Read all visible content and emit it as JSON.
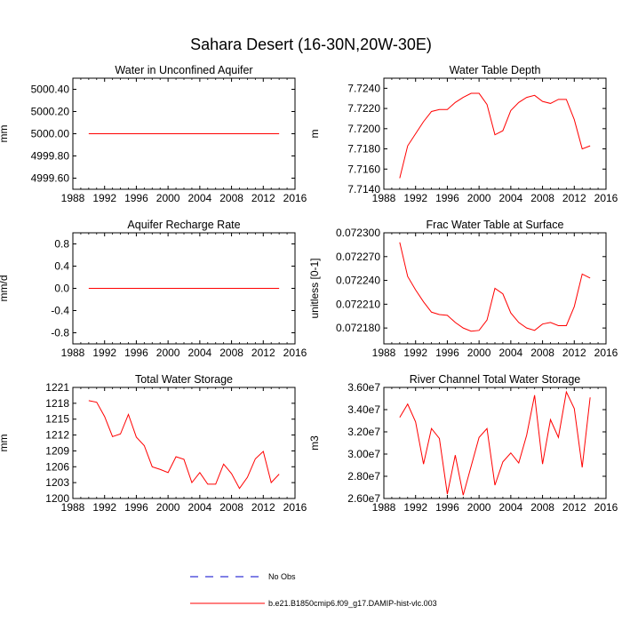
{
  "figure": {
    "title": "Sahara Desert (16-30N,20W-30E)"
  },
  "legend": [
    {
      "label": "No Obs",
      "color": "#0000cc",
      "dash": "dashed"
    },
    {
      "label": "b.e21.B1850cmip6.f09_g17.DAMIP-hist-vlc.003",
      "color": "#ff0000",
      "dash": "solid"
    }
  ],
  "chart_data": [
    {
      "type": "line",
      "title": "Water in Unconfined Aquifer",
      "ylabel": "mm",
      "xlim": [
        1988,
        2016
      ],
      "xticks": [
        1988,
        1992,
        1996,
        2000,
        2004,
        2008,
        2012,
        2016
      ],
      "xtick_labels": [
        "1988",
        "1992",
        "1996",
        "2000",
        "2004",
        "2008",
        "2012",
        "2016"
      ],
      "ylim": [
        4999.5,
        5000.5
      ],
      "yticks": [
        4999.6,
        4999.8,
        5000.0,
        5000.2,
        5000.4
      ],
      "ytick_labels": [
        "4999.60",
        "4999.80",
        "5000.00",
        "5000.20",
        "5000.40"
      ],
      "series": [
        {
          "color": "#ff0000",
          "x": [
            1990,
            1991,
            1992,
            1993,
            1994,
            1995,
            1996,
            1997,
            1998,
            1999,
            2000,
            2001,
            2002,
            2003,
            2004,
            2005,
            2006,
            2007,
            2008,
            2009,
            2010,
            2011,
            2012,
            2013,
            2014
          ],
          "y": [
            5000,
            5000,
            5000,
            5000,
            5000,
            5000,
            5000,
            5000,
            5000,
            5000,
            5000,
            5000,
            5000,
            5000,
            5000,
            5000,
            5000,
            5000,
            5000,
            5000,
            5000,
            5000,
            5000,
            5000,
            5000
          ]
        }
      ]
    },
    {
      "type": "line",
      "title": "Water Table Depth",
      "ylabel": "m",
      "xlim": [
        1988,
        2016
      ],
      "xticks": [
        1988,
        1992,
        1996,
        2000,
        2004,
        2008,
        2012,
        2016
      ],
      "xtick_labels": [
        "1988",
        "1992",
        "1996",
        "2000",
        "2004",
        "2008",
        "2012",
        "2016"
      ],
      "ylim": [
        7.714,
        7.725
      ],
      "yticks": [
        7.714,
        7.716,
        7.718,
        7.72,
        7.722,
        7.724
      ],
      "ytick_labels": [
        "7.7140",
        "7.7160",
        "7.7180",
        "7.7200",
        "7.7220",
        "7.7240"
      ],
      "series": [
        {
          "color": "#ff0000",
          "x": [
            1990,
            1991,
            1992,
            1993,
            1994,
            1995,
            1996,
            1997,
            1998,
            1999,
            2000,
            2001,
            2002,
            2003,
            2004,
            2005,
            2006,
            2007,
            2008,
            2009,
            2010,
            2011,
            2012,
            2013,
            2014
          ],
          "y": [
            7.7151,
            7.7183,
            7.7195,
            7.7207,
            7.7217,
            7.7219,
            7.7219,
            7.7226,
            7.7231,
            7.7235,
            7.7235,
            7.7224,
            7.7194,
            7.7198,
            7.7218,
            7.7226,
            7.7231,
            7.7233,
            7.7227,
            7.7225,
            7.7229,
            7.7229,
            7.7209,
            7.718,
            7.7183
          ]
        }
      ]
    },
    {
      "type": "line",
      "title": "Aquifer Recharge Rate",
      "ylabel": "mm/d",
      "xlim": [
        1988,
        2016
      ],
      "xticks": [
        1988,
        1992,
        1996,
        2000,
        2004,
        2008,
        2012,
        2016
      ],
      "xtick_labels": [
        "1988",
        "1992",
        "1996",
        "2000",
        "2004",
        "2008",
        "2012",
        "2016"
      ],
      "ylim": [
        -1.0,
        1.0
      ],
      "yticks": [
        -0.8,
        -0.4,
        0.0,
        0.4,
        0.8
      ],
      "ytick_labels": [
        "-0.8",
        "-0.4",
        "0.0",
        "0.4",
        "0.8"
      ],
      "series": [
        {
          "color": "#ff0000",
          "x": [
            1990,
            1991,
            1992,
            1993,
            1994,
            1995,
            1996,
            1997,
            1998,
            1999,
            2000,
            2001,
            2002,
            2003,
            2004,
            2005,
            2006,
            2007,
            2008,
            2009,
            2010,
            2011,
            2012,
            2013,
            2014
          ],
          "y": [
            0,
            0,
            0,
            0,
            0,
            0,
            0,
            0,
            0,
            0,
            0,
            0,
            0,
            0,
            0,
            0,
            0,
            0,
            0,
            0,
            0,
            0,
            0,
            0,
            0
          ]
        }
      ]
    },
    {
      "type": "line",
      "title": "Frac Water Table at Surface",
      "ylabel": "unitless [0-1]",
      "xlim": [
        1988,
        2016
      ],
      "xticks": [
        1988,
        1992,
        1996,
        2000,
        2004,
        2008,
        2012,
        2016
      ],
      "xtick_labels": [
        "1988",
        "1992",
        "1996",
        "2000",
        "2004",
        "2008",
        "2012",
        "2016"
      ],
      "ylim": [
        0.07216,
        0.0723
      ],
      "yticks": [
        0.0723,
        0.07227,
        0.07224,
        0.07221,
        0.07218
      ],
      "ytick_labels": [
        "0.072300",
        "0.072270",
        "0.072240",
        "0.072210",
        "0.072180"
      ],
      "series": [
        {
          "color": "#ff0000",
          "x": [
            1990,
            1991,
            1992,
            1993,
            1994,
            1995,
            1996,
            1997,
            1998,
            1999,
            2000,
            2001,
            2002,
            2003,
            2004,
            2005,
            2006,
            2007,
            2008,
            2009,
            2010,
            2011,
            2012,
            2013,
            2014
          ],
          "y": [
            0.072288,
            0.072245,
            0.072228,
            0.072213,
            0.0722,
            0.072197,
            0.072196,
            0.072187,
            0.07218,
            0.072176,
            0.072177,
            0.07219,
            0.07223,
            0.072223,
            0.072199,
            0.072187,
            0.07218,
            0.072177,
            0.072185,
            0.072187,
            0.072183,
            0.072183,
            0.072207,
            0.072248,
            0.072243
          ]
        }
      ]
    },
    {
      "type": "line",
      "title": "Total Water Storage",
      "ylabel": "mm",
      "xlim": [
        1988,
        2016
      ],
      "xticks": [
        1988,
        1992,
        1996,
        2000,
        2004,
        2008,
        2012,
        2016
      ],
      "xtick_labels": [
        "1988",
        "1992",
        "1996",
        "2000",
        "2004",
        "2008",
        "2012",
        "2016"
      ],
      "ylim": [
        1200,
        1221
      ],
      "yticks": [
        1200,
        1203,
        1206,
        1209,
        1212,
        1215,
        1218,
        1221
      ],
      "ytick_labels": [
        "1200",
        "1203",
        "1206",
        "1209",
        "1212",
        "1215",
        "1218",
        "1221"
      ],
      "series": [
        {
          "color": "#ff0000",
          "x": [
            1990,
            1991,
            1992,
            1993,
            1994,
            1995,
            1996,
            1997,
            1998,
            1999,
            2000,
            2001,
            2002,
            2003,
            2004,
            2005,
            2006,
            2007,
            2008,
            2009,
            2010,
            2011,
            2012,
            2013,
            2014
          ],
          "y": [
            1218.5,
            1218.2,
            1215.5,
            1211.7,
            1212.2,
            1215.9,
            1211.6,
            1210.0,
            1206.0,
            1205.5,
            1204.9,
            1207.9,
            1207.4,
            1203.0,
            1204.9,
            1202.7,
            1202.7,
            1206.5,
            1204.7,
            1201.9,
            1204.0,
            1207.5,
            1208.9,
            1203.0,
            1204.6
          ]
        }
      ]
    },
    {
      "type": "line",
      "title": "River Channel Total Water Storage",
      "ylabel": "m3",
      "xlim": [
        1988,
        2016
      ],
      "xticks": [
        1988,
        1992,
        1996,
        2000,
        2004,
        2008,
        2012,
        2016
      ],
      "xtick_labels": [
        "1988",
        "1992",
        "1996",
        "2000",
        "2004",
        "2008",
        "2012",
        "2016"
      ],
      "ylim": [
        26000000,
        36000000
      ],
      "yticks": [
        26000000,
        28000000,
        30000000,
        32000000,
        34000000,
        36000000
      ],
      "ytick_labels": [
        "2.60e7",
        "2.80e7",
        "3.00e7",
        "3.20e7",
        "3.40e7",
        "3.60e7"
      ],
      "series": [
        {
          "color": "#ff0000",
          "x": [
            1990,
            1991,
            1992,
            1993,
            1994,
            1995,
            1996,
            1997,
            1998,
            1999,
            2000,
            2001,
            2002,
            2003,
            2004,
            2005,
            2006,
            2007,
            2008,
            2009,
            2010,
            2011,
            2012,
            2013,
            2014
          ],
          "y": [
            33300000,
            34500000,
            32900000,
            29100000,
            32300000,
            31400000,
            26400000,
            29900000,
            26300000,
            28900000,
            31500000,
            32300000,
            27200000,
            29300000,
            30100000,
            29200000,
            31700000,
            35300000,
            29100000,
            33100000,
            31500000,
            35600000,
            34100000,
            28800000,
            35100000
          ]
        }
      ]
    }
  ]
}
